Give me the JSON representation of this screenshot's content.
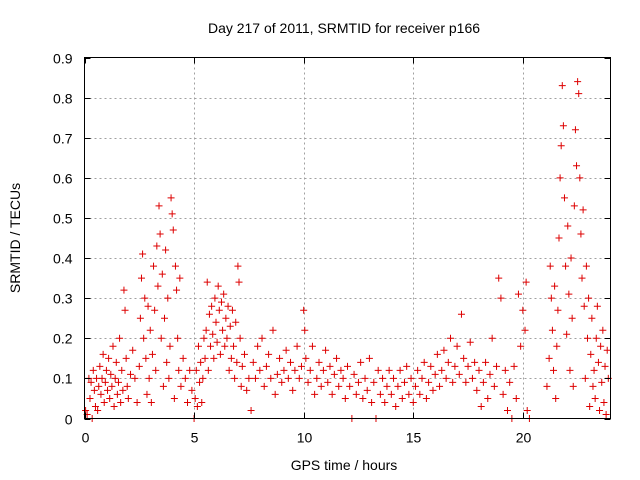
{
  "chart_data": {
    "type": "scatter",
    "title": "Day 217 of 2011, SRMTID for receiver p166",
    "xlabel": "GPS time / hours",
    "ylabel": "SRMTID / TECUs",
    "xlim": [
      0,
      24
    ],
    "ylim": [
      0,
      0.9
    ],
    "xticks": [
      0,
      5,
      10,
      15,
      20
    ],
    "xtick_labels": [
      "0",
      "5",
      "10",
      "15",
      "20"
    ],
    "yticks": [
      0,
      0.1,
      0.2,
      0.3,
      0.4,
      0.5,
      0.6,
      0.7,
      0.8,
      0.9
    ],
    "ytick_labels": [
      "0",
      "0.1",
      "0.2",
      "0.3",
      "0.4",
      "0.5",
      "0.6",
      "0.7",
      "0.8",
      "0.9"
    ],
    "grid": true,
    "marker": "plus",
    "color": "#dd0000",
    "series": [
      {
        "name": "SRMTID",
        "points": [
          [
            0.05,
            0.02
          ],
          [
            0.12,
            0.01
          ],
          [
            0.2,
            0.1
          ],
          [
            0.25,
            0.05
          ],
          [
            0.3,
            0.09
          ],
          [
            0.35,
            0.0
          ],
          [
            0.4,
            0.12
          ],
          [
            0.45,
            0.07
          ],
          [
            0.5,
            0.03
          ],
          [
            0.55,
            0.1
          ],
          [
            0.6,
            0.02
          ],
          [
            0.65,
            0.08
          ],
          [
            0.7,
            0.13
          ],
          [
            0.75,
            0.06
          ],
          [
            0.8,
            0.1
          ],
          [
            0.85,
            0.16
          ],
          [
            0.9,
            0.04
          ],
          [
            0.95,
            0.09
          ],
          [
            1.0,
            0.12
          ],
          [
            1.05,
            0.07
          ],
          [
            1.1,
            0.15
          ],
          [
            1.15,
            0.05
          ],
          [
            1.2,
            0.11
          ],
          [
            1.25,
            0.08
          ],
          [
            1.3,
            0.18
          ],
          [
            1.35,
            0.03
          ],
          [
            1.4,
            0.1
          ],
          [
            1.45,
            0.14
          ],
          [
            1.5,
            0.06
          ],
          [
            1.55,
            0.09
          ],
          [
            1.6,
            0.2
          ],
          [
            1.65,
            0.04
          ],
          [
            1.7,
            0.12
          ],
          [
            1.75,
            0.07
          ],
          [
            1.8,
            0.32
          ],
          [
            1.85,
            0.27
          ],
          [
            1.9,
            0.15
          ],
          [
            1.95,
            0.08
          ],
          [
            2.0,
            0.05
          ],
          [
            2.1,
            0.11
          ],
          [
            2.2,
            0.17
          ],
          [
            2.3,
            0.1
          ],
          [
            2.4,
            0.04
          ],
          [
            2.5,
            0.13
          ],
          [
            2.55,
            0.25
          ],
          [
            2.6,
            0.35
          ],
          [
            2.65,
            0.41
          ],
          [
            2.7,
            0.2
          ],
          [
            2.75,
            0.3
          ],
          [
            2.8,
            0.15
          ],
          [
            2.85,
            0.06
          ],
          [
            2.9,
            0.28
          ],
          [
            2.95,
            0.1
          ],
          [
            3.0,
            0.22
          ],
          [
            3.05,
            0.04
          ],
          [
            3.1,
            0.16
          ],
          [
            3.15,
            0.38
          ],
          [
            3.2,
            0.27
          ],
          [
            3.25,
            0.12
          ],
          [
            3.3,
            0.43
          ],
          [
            3.35,
            0.33
          ],
          [
            3.4,
            0.53
          ],
          [
            3.45,
            0.46
          ],
          [
            3.5,
            0.2
          ],
          [
            3.55,
            0.36
          ],
          [
            3.6,
            0.08
          ],
          [
            3.65,
            0.25
          ],
          [
            3.7,
            0.42
          ],
          [
            3.75,
            0.14
          ],
          [
            3.8,
            0.3
          ],
          [
            3.85,
            0.1
          ],
          [
            3.9,
            0.18
          ],
          [
            3.95,
            0.55
          ],
          [
            4.0,
            0.51
          ],
          [
            4.05,
            0.47
          ],
          [
            4.1,
            0.05
          ],
          [
            4.15,
            0.38
          ],
          [
            4.2,
            0.32
          ],
          [
            4.25,
            0.2
          ],
          [
            4.3,
            0.12
          ],
          [
            4.35,
            0.35
          ],
          [
            4.4,
            0.08
          ],
          [
            4.5,
            0.15
          ],
          [
            4.6,
            0.1
          ],
          [
            4.7,
            0.04
          ],
          [
            4.8,
            0.12
          ],
          [
            4.9,
            0.07
          ],
          [
            5.0,
            0.0
          ],
          [
            5.05,
            0.05
          ],
          [
            5.1,
            0.12
          ],
          [
            5.15,
            0.03
          ],
          [
            5.2,
            0.18
          ],
          [
            5.25,
            0.09
          ],
          [
            5.3,
            0.14
          ],
          [
            5.35,
            0.04
          ],
          [
            5.4,
            0.1
          ],
          [
            5.45,
            0.2
          ],
          [
            5.5,
            0.15
          ],
          [
            5.55,
            0.22
          ],
          [
            5.6,
            0.34
          ],
          [
            5.65,
            0.12
          ],
          [
            5.7,
            0.26
          ],
          [
            5.75,
            0.18
          ],
          [
            5.8,
            0.28
          ],
          [
            5.85,
            0.21
          ],
          [
            5.9,
            0.15
          ],
          [
            5.95,
            0.3
          ],
          [
            6.0,
            0.24
          ],
          [
            6.05,
            0.19
          ],
          [
            6.1,
            0.33
          ],
          [
            6.15,
            0.27
          ],
          [
            6.2,
            0.16
          ],
          [
            6.25,
            0.29
          ],
          [
            6.3,
            0.22
          ],
          [
            6.35,
            0.31
          ],
          [
            6.4,
            0.18
          ],
          [
            6.45,
            0.25
          ],
          [
            6.5,
            0.2
          ],
          [
            6.55,
            0.28
          ],
          [
            6.6,
            0.12
          ],
          [
            6.65,
            0.23
          ],
          [
            6.7,
            0.15
          ],
          [
            6.75,
            0.27
          ],
          [
            6.8,
            0.18
          ],
          [
            6.85,
            0.1
          ],
          [
            6.9,
            0.24
          ],
          [
            6.95,
            0.14
          ],
          [
            7.0,
            0.38
          ],
          [
            7.05,
            0.34
          ],
          [
            7.1,
            0.2
          ],
          [
            7.15,
            0.08
          ],
          [
            7.2,
            0.13
          ],
          [
            7.3,
            0.16
          ],
          [
            7.4,
            0.07
          ],
          [
            7.5,
            0.1
          ],
          [
            7.6,
            0.02
          ],
          [
            7.7,
            0.14
          ],
          [
            7.8,
            0.1
          ],
          [
            7.9,
            0.18
          ],
          [
            8.0,
            0.12
          ],
          [
            8.1,
            0.2
          ],
          [
            8.2,
            0.08
          ],
          [
            8.3,
            0.13
          ],
          [
            8.4,
            0.16
          ],
          [
            8.5,
            0.1
          ],
          [
            8.6,
            0.22
          ],
          [
            8.7,
            0.06
          ],
          [
            8.8,
            0.11
          ],
          [
            8.9,
            0.15
          ],
          [
            9.0,
            0.09
          ],
          [
            9.1,
            0.12
          ],
          [
            9.2,
            0.17
          ],
          [
            9.3,
            0.1
          ],
          [
            9.4,
            0.14
          ],
          [
            9.5,
            0.07
          ],
          [
            9.6,
            0.12
          ],
          [
            9.7,
            0.18
          ],
          [
            9.8,
            0.1
          ],
          [
            9.9,
            0.13
          ],
          [
            10.0,
            0.27
          ],
          [
            10.05,
            0.22
          ],
          [
            10.1,
            0.15
          ],
          [
            10.2,
            0.09
          ],
          [
            10.3,
            0.12
          ],
          [
            10.4,
            0.18
          ],
          [
            10.5,
            0.06
          ],
          [
            10.6,
            0.1
          ],
          [
            10.7,
            0.14
          ],
          [
            10.8,
            0.08
          ],
          [
            10.9,
            0.12
          ],
          [
            11.0,
            0.17
          ],
          [
            11.1,
            0.09
          ],
          [
            11.2,
            0.13
          ],
          [
            11.3,
            0.06
          ],
          [
            11.4,
            0.11
          ],
          [
            11.5,
            0.15
          ],
          [
            11.6,
            0.08
          ],
          [
            11.7,
            0.12
          ],
          [
            11.8,
            0.1
          ],
          [
            11.9,
            0.05
          ],
          [
            12.0,
            0.13
          ],
          [
            12.1,
            0.08
          ],
          [
            12.2,
            0.0
          ],
          [
            12.3,
            0.11
          ],
          [
            12.4,
            0.06
          ],
          [
            12.5,
            0.09
          ],
          [
            12.6,
            0.14
          ],
          [
            12.7,
            0.05
          ],
          [
            12.8,
            0.1
          ],
          [
            12.9,
            0.07
          ],
          [
            13.0,
            0.15
          ],
          [
            13.1,
            0.04
          ],
          [
            13.2,
            0.09
          ],
          [
            13.3,
            0.0
          ],
          [
            13.4,
            0.12
          ],
          [
            13.5,
            0.06
          ],
          [
            13.6,
            0.1
          ],
          [
            13.7,
            0.04
          ],
          [
            13.8,
            0.08
          ],
          [
            13.9,
            0.12
          ],
          [
            14.0,
            0.06
          ],
          [
            14.1,
            0.1
          ],
          [
            14.2,
            0.03
          ],
          [
            14.3,
            0.08
          ],
          [
            14.4,
            0.12
          ],
          [
            14.5,
            0.05
          ],
          [
            14.6,
            0.09
          ],
          [
            14.7,
            0.13
          ],
          [
            14.8,
            0.06
          ],
          [
            14.9,
            0.1
          ],
          [
            15.0,
            0.04
          ],
          [
            15.1,
            0.08
          ],
          [
            15.2,
            0.12
          ],
          [
            15.3,
            0.06
          ],
          [
            15.4,
            0.1
          ],
          [
            15.5,
            0.14
          ],
          [
            15.6,
            0.05
          ],
          [
            15.7,
            0.09
          ],
          [
            15.8,
            0.13
          ],
          [
            15.9,
            0.07
          ],
          [
            16.0,
            0.11
          ],
          [
            16.1,
            0.16
          ],
          [
            16.2,
            0.08
          ],
          [
            16.3,
            0.12
          ],
          [
            16.4,
            0.17
          ],
          [
            16.5,
            0.1
          ],
          [
            16.6,
            0.14
          ],
          [
            16.7,
            0.2
          ],
          [
            16.8,
            0.09
          ],
          [
            16.9,
            0.13
          ],
          [
            17.0,
            0.18
          ],
          [
            17.1,
            0.11
          ],
          [
            17.2,
            0.26
          ],
          [
            17.3,
            0.15
          ],
          [
            17.4,
            0.09
          ],
          [
            17.5,
            0.13
          ],
          [
            17.6,
            0.19
          ],
          [
            17.7,
            0.1
          ],
          [
            17.8,
            0.14
          ],
          [
            17.9,
            0.07
          ],
          [
            18.0,
            0.12
          ],
          [
            18.1,
            0.03
          ],
          [
            18.2,
            0.09
          ],
          [
            18.3,
            0.14
          ],
          [
            18.4,
            0.05
          ],
          [
            18.5,
            0.11
          ],
          [
            18.6,
            0.2
          ],
          [
            18.7,
            0.08
          ],
          [
            18.8,
            0.13
          ],
          [
            18.9,
            0.35
          ],
          [
            19.0,
            0.3
          ],
          [
            19.1,
            0.06
          ],
          [
            19.2,
            0.12
          ],
          [
            19.3,
            0.02
          ],
          [
            19.4,
            0.09
          ],
          [
            19.5,
            0.0
          ],
          [
            19.6,
            0.13
          ],
          [
            19.7,
            0.05
          ],
          [
            19.8,
            0.31
          ],
          [
            19.9,
            0.18
          ],
          [
            20.0,
            0.27
          ],
          [
            20.1,
            0.22
          ],
          [
            20.15,
            0.34
          ],
          [
            20.2,
            0.02
          ],
          [
            20.3,
            0.0
          ],
          [
            21.1,
            0.08
          ],
          [
            21.2,
            0.15
          ],
          [
            21.25,
            0.38
          ],
          [
            21.3,
            0.3
          ],
          [
            21.35,
            0.22
          ],
          [
            21.4,
            0.12
          ],
          [
            21.45,
            0.33
          ],
          [
            21.5,
            0.05
          ],
          [
            21.55,
            0.18
          ],
          [
            21.6,
            0.27
          ],
          [
            21.65,
            0.45
          ],
          [
            21.7,
            0.6
          ],
          [
            21.75,
            0.68
          ],
          [
            21.8,
            0.83
          ],
          [
            21.85,
            0.73
          ],
          [
            21.9,
            0.55
          ],
          [
            21.95,
            0.38
          ],
          [
            22.0,
            0.21
          ],
          [
            22.05,
            0.48
          ],
          [
            22.1,
            0.31
          ],
          [
            22.15,
            0.12
          ],
          [
            22.2,
            0.4
          ],
          [
            22.25,
            0.25
          ],
          [
            22.3,
            0.08
          ],
          [
            22.35,
            0.53
          ],
          [
            22.4,
            0.72
          ],
          [
            22.45,
            0.63
          ],
          [
            22.5,
            0.84
          ],
          [
            22.55,
            0.81
          ],
          [
            22.6,
            0.6
          ],
          [
            22.65,
            0.46
          ],
          [
            22.7,
            0.35
          ],
          [
            22.75,
            0.52
          ],
          [
            22.8,
            0.28
          ],
          [
            22.85,
            0.1
          ],
          [
            22.9,
            0.38
          ],
          [
            22.95,
            0.2
          ],
          [
            23.0,
            0.3
          ],
          [
            23.05,
            0.03
          ],
          [
            23.1,
            0.16
          ],
          [
            23.15,
            0.25
          ],
          [
            23.2,
            0.08
          ],
          [
            23.25,
            0.12
          ],
          [
            23.3,
            0.05
          ],
          [
            23.35,
            0.2
          ],
          [
            23.4,
            0.28
          ],
          [
            23.45,
            0.14
          ],
          [
            23.5,
            0.02
          ],
          [
            23.55,
            0.18
          ],
          [
            23.6,
            0.09
          ],
          [
            23.65,
            0.22
          ],
          [
            23.7,
            0.04
          ],
          [
            23.75,
            0.13
          ],
          [
            23.8,
            0.01
          ],
          [
            23.85,
            0.17
          ],
          [
            23.9,
            0.1
          ]
        ]
      }
    ]
  }
}
